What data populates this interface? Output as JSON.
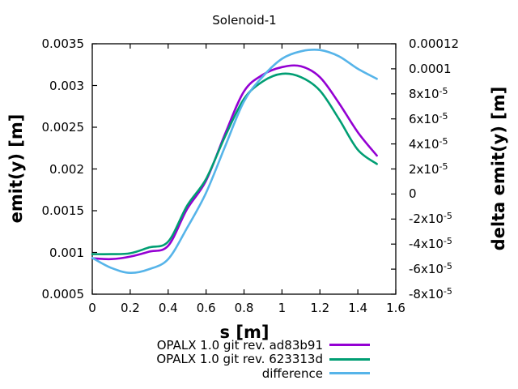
{
  "title": "Solenoid-1",
  "colors": {
    "background": "#ffffff",
    "frame": "#000000",
    "series_purple": "#9400d3",
    "series_green": "#009e73",
    "series_blue": "#56b4e9"
  },
  "chart_data": {
    "type": "line",
    "title": "Solenoid-1",
    "xlabel": "s [m]",
    "ylabel": "emit(y) [m]",
    "y2label": "delta emit(y) [m]",
    "xlim": [
      0,
      1.6
    ],
    "ylim": [
      0.0005,
      0.0035
    ],
    "y2lim": [
      -8e-05,
      0.00012
    ],
    "grid": false,
    "legend_position": "below-plot-right",
    "x_ticks": {
      "values": [
        0,
        0.2,
        0.4,
        0.6,
        0.8,
        1,
        1.2,
        1.4,
        1.6
      ],
      "labels": [
        "0",
        "0.2",
        "0.4",
        "0.6",
        "0.8",
        "1",
        "1.2",
        "1.4",
        "1.6"
      ]
    },
    "y_ticks": {
      "values": [
        0.0005,
        0.001,
        0.0015,
        0.002,
        0.0025,
        0.003,
        0.0035
      ],
      "labels": [
        "0.0005",
        "0.001",
        "0.0015",
        "0.002",
        "0.0025",
        "0.003",
        "0.0035"
      ]
    },
    "y2_ticks": {
      "values": [
        -8e-05,
        -6e-05,
        -4e-05,
        -2e-05,
        0,
        2e-05,
        4e-05,
        6e-05,
        8e-05,
        0.0001,
        0.00012
      ],
      "labels": [
        "-8x10^-5",
        "-6x10^-5",
        "-4x10^-5",
        "-2x10^-5",
        "0",
        "2x10^-5",
        "4x10^-5",
        "6x10^-5",
        "8x10^-5",
        "0.0001",
        "0.00012"
      ]
    },
    "x": [
      0,
      0.1,
      0.2,
      0.3,
      0.4,
      0.5,
      0.6,
      0.7,
      0.8,
      0.9,
      1.0,
      1.1,
      1.2,
      1.3,
      1.4,
      1.5
    ],
    "series": [
      {
        "name": "OPALX 1.0 git rev. ad83b91",
        "yaxis": "y1",
        "color": "#9400d3",
        "values": [
          0.00093,
          0.00092,
          0.00095,
          0.00101,
          0.00108,
          0.00152,
          0.00186,
          0.00242,
          0.00293,
          0.00313,
          0.00322,
          0.00323,
          0.0031,
          0.00279,
          0.00244,
          0.00216
        ]
      },
      {
        "name": "OPALX 1.0 git rev. 623313d",
        "yaxis": "y1",
        "color": "#009e73",
        "values": [
          0.00098,
          0.00098,
          0.00099,
          0.00106,
          0.00113,
          0.00156,
          0.00188,
          0.00239,
          0.00284,
          0.00305,
          0.00314,
          0.0031,
          0.00294,
          0.0026,
          0.00223,
          0.00206
        ]
      },
      {
        "name": "difference",
        "yaxis": "y2",
        "color": "#56b4e9",
        "values": [
          -5.1e-05,
          -5.9e-05,
          -6.3e-05,
          -6e-05,
          -5.2e-05,
          -2.7e-05,
          1e-06,
          3.8e-05,
          7.4e-05,
          9.4e-05,
          0.000108,
          0.000114,
          0.000115,
          0.00011,
          0.0001,
          9.2e-05
        ]
      }
    ]
  }
}
